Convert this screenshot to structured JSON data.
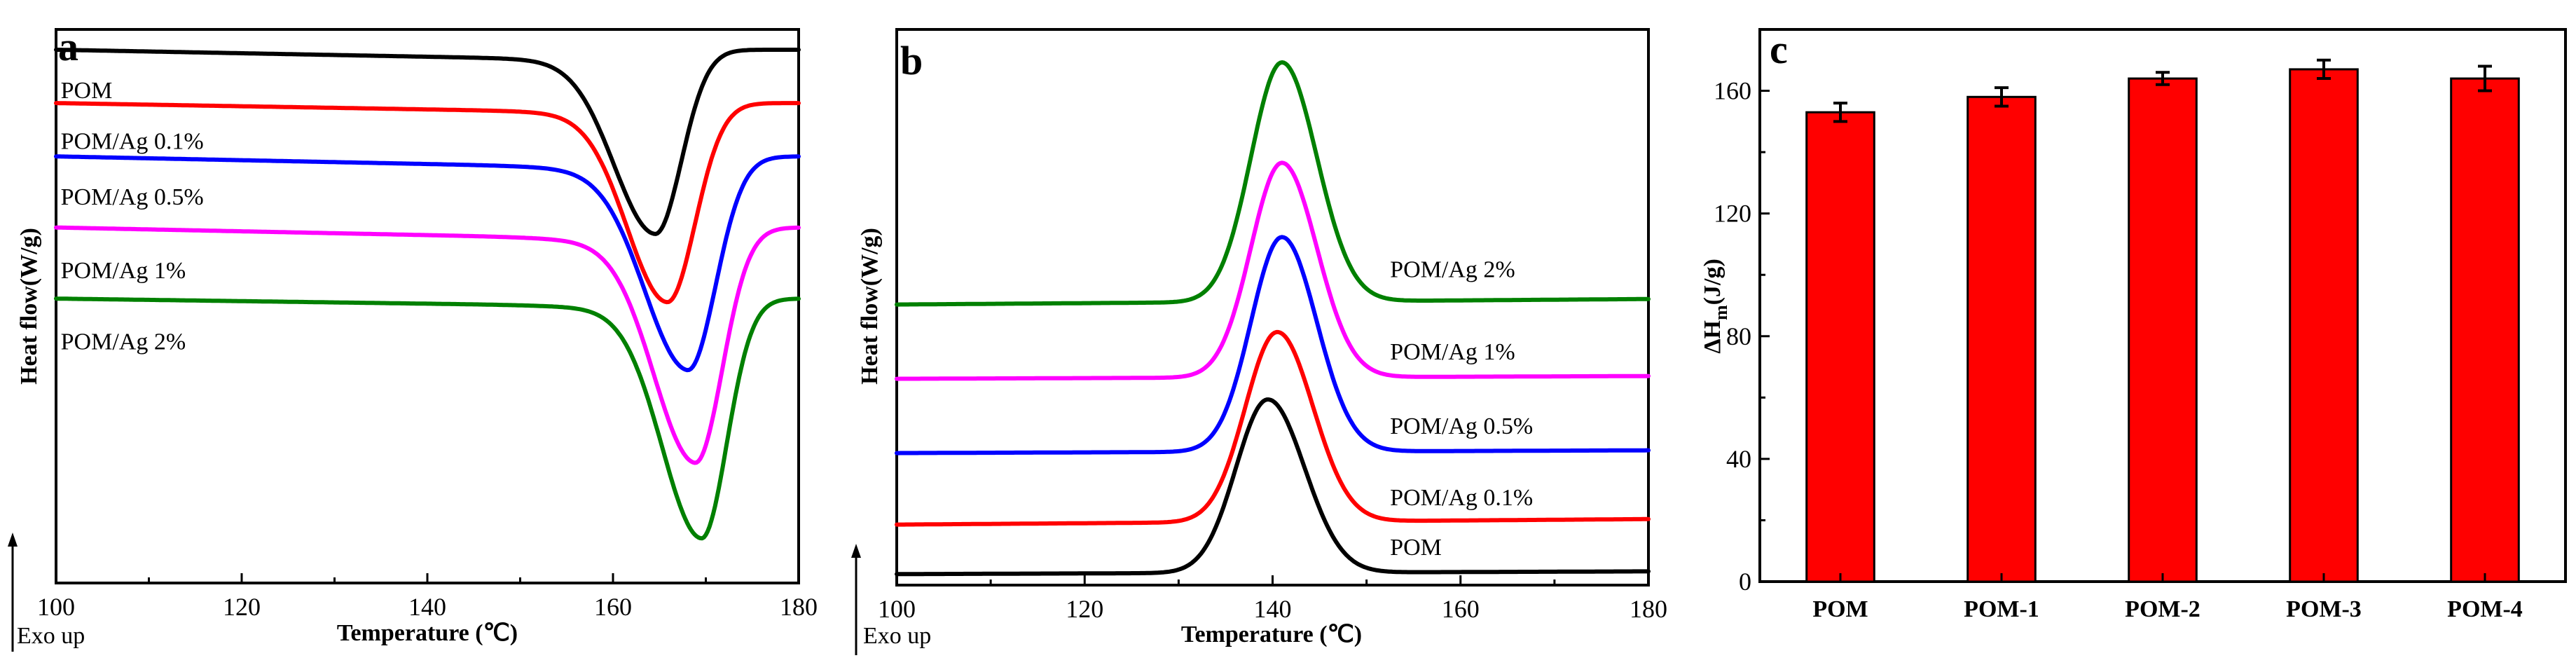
{
  "chart_data": [
    {
      "panel": "a",
      "type": "line",
      "xlabel": "Temperature (℃)",
      "ylabel": "Heat flow(W/g)",
      "exo_label": "Exo  up",
      "xlim": [
        100,
        180
      ],
      "xticks": [
        "100",
        "120",
        "140",
        "160",
        "180"
      ],
      "curve_shape": "endotherm",
      "series": [
        {
          "name": "POM",
          "color": "#000000",
          "baseline": 1.0,
          "slope": 0.055,
          "peak_x": 164.5,
          "depth": 0.65,
          "width_left": 4.4,
          "width_right": 2.8,
          "end_level": 1.0,
          "label_anchor": [
            100.5,
            0.81
          ]
        },
        {
          "name": "POM/Ag 0.1%",
          "color": "#ff0000",
          "baseline": 0.79,
          "slope": 0.05,
          "peak_x": 165.8,
          "depth": 0.71,
          "width_left": 4.3,
          "width_right": 3.0,
          "end_level": 0.79,
          "label_anchor": [
            100.5,
            0.61
          ]
        },
        {
          "name": "POM/Ag 0.5%",
          "color": "#0000ff",
          "baseline": 0.58,
          "slope": 0.06,
          "peak_x": 168.0,
          "depth": 0.74,
          "width_left": 4.6,
          "width_right": 3.0,
          "end_level": 0.58,
          "label_anchor": [
            100.5,
            0.39
          ]
        },
        {
          "name": "POM/Ag 1%",
          "color": "#ff00ff",
          "baseline": 0.3,
          "slope": 0.06,
          "peak_x": 168.8,
          "depth": 0.82,
          "width_left": 4.4,
          "width_right": 2.9,
          "end_level": 0.3,
          "label_anchor": [
            100.5,
            0.1
          ]
        },
        {
          "name": "POM/Ag 2%",
          "color": "#008000",
          "baseline": 0.02,
          "slope": 0.04,
          "peak_x": 169.5,
          "depth": 0.87,
          "width_left": 4.2,
          "width_right": 2.7,
          "end_level": 0.02,
          "label_anchor": [
            100.5,
            -0.18
          ]
        }
      ]
    },
    {
      "panel": "b",
      "type": "line",
      "xlabel": "Temperature (℃)",
      "ylabel": "Heat flow(W/g)",
      "exo_label": "Exo  up",
      "xlim": [
        100,
        180
      ],
      "xticks": [
        "100",
        "120",
        "140",
        "160",
        "180"
      ],
      "curve_shape": "exotherm",
      "series": [
        {
          "name": "POM",
          "color": "#000000",
          "baseline": 0.0,
          "peak_x": 139.5,
          "height": 0.63,
          "width_left": 3.4,
          "width_right": 3.9,
          "end_level": 0.01,
          "label_anchor": [
            152.5,
            0.07
          ]
        },
        {
          "name": "POM/Ag 0.1%",
          "color": "#ff0000",
          "baseline": 0.18,
          "peak_x": 140.5,
          "height": 0.69,
          "width_left": 3.4,
          "width_right": 3.8,
          "end_level": 0.2,
          "label_anchor": [
            152.5,
            0.25
          ]
        },
        {
          "name": "POM/Ag 0.5%",
          "color": "#0000ff",
          "baseline": 0.44,
          "peak_x": 141.0,
          "height": 0.78,
          "width_left": 3.3,
          "width_right": 3.7,
          "end_level": 0.45,
          "label_anchor": [
            152.5,
            0.51
          ]
        },
        {
          "name": "POM/Ag 1%",
          "color": "#ff00ff",
          "baseline": 0.71,
          "peak_x": 141.0,
          "height": 0.78,
          "width_left": 3.3,
          "width_right": 3.7,
          "end_level": 0.72,
          "label_anchor": [
            152.5,
            0.78
          ]
        },
        {
          "name": "POM/Ag 2%",
          "color": "#008000",
          "baseline": 0.98,
          "peak_x": 141.0,
          "height": 0.87,
          "width_left": 3.3,
          "width_right": 3.7,
          "end_level": 1.0,
          "label_anchor": [
            152.5,
            1.08
          ]
        }
      ]
    },
    {
      "panel": "c",
      "type": "bar",
      "xlabel": "",
      "ylabel": "ΔH",
      "ylabel_sub": "m",
      "ylabel_unit": "(J/g)",
      "ylim": [
        0,
        180
      ],
      "yticks": [
        "0",
        "40",
        "80",
        "120",
        "160"
      ],
      "categories": [
        "POM",
        "POM-1",
        "POM-2",
        "POM-3",
        "POM-4"
      ],
      "values": [
        153,
        158,
        164,
        167,
        164
      ],
      "errors": [
        3,
        3,
        2,
        3,
        4
      ],
      "bar_color": "#ff0000"
    }
  ]
}
